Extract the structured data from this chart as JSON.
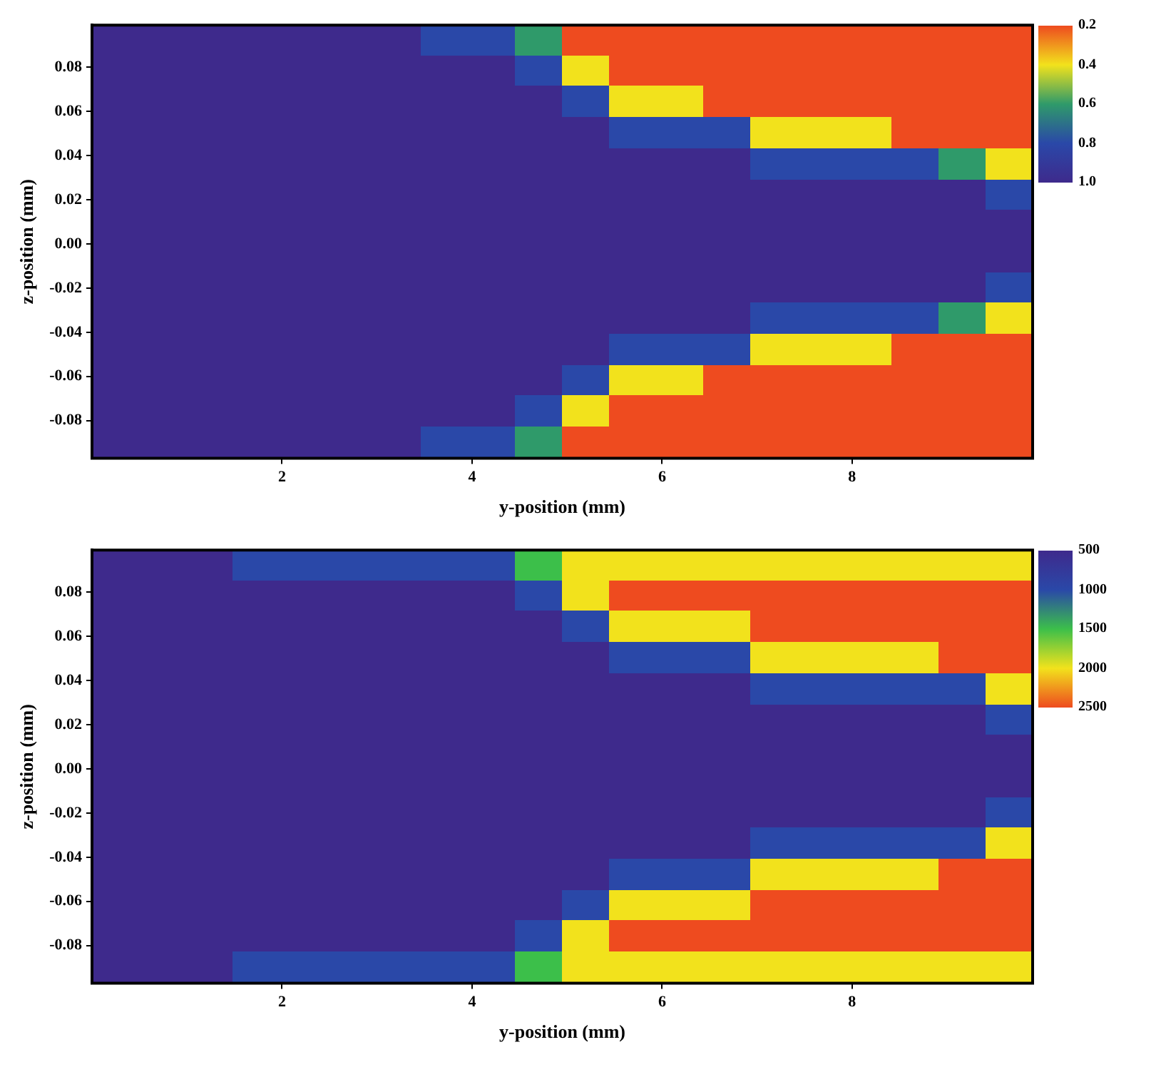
{
  "chart_data": [
    {
      "type": "heatmap",
      "xlabel": "y-position (mm)",
      "ylabel": "z-position (mm)",
      "xlim": [
        0,
        9.9
      ],
      "ylim": [
        -0.097,
        0.099
      ],
      "xticks": [
        2,
        4,
        6,
        8
      ],
      "yticks": [
        0.08,
        0.06,
        0.04,
        0.02,
        {
          "value": 0,
          "label": "0.00"
        },
        -0.02,
        -0.04,
        -0.06,
        -0.08
      ],
      "clim": [
        0.2,
        1
      ],
      "cticks": [
        0.2,
        0.4,
        0.6,
        0.8,
        {
          "value": 1,
          "label": "1.0"
        }
      ],
      "colors": [
        "#ee4b1f",
        "#f2e21c",
        "#2f9a6a",
        "#2a48a8",
        "#3e2a8c"
      ],
      "cells": [
        [
          1,
          1,
          1,
          1,
          1,
          1,
          1,
          0.8,
          0.8,
          0.6,
          0.2,
          0.2,
          0.2,
          0.2,
          0.2,
          0.2,
          0.2,
          0.2,
          0.2,
          0.2
        ],
        [
          1,
          1,
          1,
          1,
          1,
          1,
          1,
          1,
          1,
          0.8,
          0.4,
          0.2,
          0.2,
          0.2,
          0.2,
          0.2,
          0.2,
          0.2,
          0.2,
          0.2
        ],
        [
          1,
          1,
          1,
          1,
          1,
          1,
          1,
          1,
          1,
          1,
          0.8,
          0.4,
          0.4,
          0.2,
          0.2,
          0.2,
          0.2,
          0.2,
          0.2,
          0.2
        ],
        [
          1,
          1,
          1,
          1,
          1,
          1,
          1,
          1,
          1,
          1,
          1,
          0.8,
          0.8,
          0.8,
          0.4,
          0.4,
          0.4,
          0.2,
          0.2,
          0.2
        ],
        [
          1,
          1,
          1,
          1,
          1,
          1,
          1,
          1,
          1,
          1,
          1,
          1,
          1,
          1,
          0.8,
          0.8,
          0.8,
          0.8,
          0.6,
          0.4
        ],
        [
          1,
          1,
          1,
          1,
          1,
          1,
          1,
          1,
          1,
          1,
          1,
          1,
          1,
          1,
          1,
          1,
          1,
          1,
          1,
          0.8
        ],
        [
          1,
          1,
          1,
          1,
          1,
          1,
          1,
          1,
          1,
          1,
          1,
          1,
          1,
          1,
          1,
          1,
          1,
          1,
          1,
          1
        ],
        [
          1,
          1,
          1,
          1,
          1,
          1,
          1,
          1,
          1,
          1,
          1,
          1,
          1,
          1,
          1,
          1,
          1,
          1,
          1,
          1
        ],
        [
          1,
          1,
          1,
          1,
          1,
          1,
          1,
          1,
          1,
          1,
          1,
          1,
          1,
          1,
          1,
          1,
          1,
          1,
          1,
          0.8
        ],
        [
          1,
          1,
          1,
          1,
          1,
          1,
          1,
          1,
          1,
          1,
          1,
          1,
          1,
          1,
          0.8,
          0.8,
          0.8,
          0.8,
          0.6,
          0.4
        ],
        [
          1,
          1,
          1,
          1,
          1,
          1,
          1,
          1,
          1,
          1,
          1,
          0.8,
          0.8,
          0.8,
          0.4,
          0.4,
          0.4,
          0.2,
          0.2,
          0.2
        ],
        [
          1,
          1,
          1,
          1,
          1,
          1,
          1,
          1,
          1,
          1,
          0.8,
          0.4,
          0.4,
          0.2,
          0.2,
          0.2,
          0.2,
          0.2,
          0.2,
          0.2
        ],
        [
          1,
          1,
          1,
          1,
          1,
          1,
          1,
          1,
          1,
          0.8,
          0.4,
          0.2,
          0.2,
          0.2,
          0.2,
          0.2,
          0.2,
          0.2,
          0.2,
          0.2
        ],
        [
          1,
          1,
          1,
          1,
          1,
          1,
          1,
          0.8,
          0.8,
          0.6,
          0.2,
          0.2,
          0.2,
          0.2,
          0.2,
          0.2,
          0.2,
          0.2,
          0.2,
          0.2
        ]
      ]
    },
    {
      "type": "heatmap",
      "xlabel": "y-position (mm)",
      "ylabel": "z-position (mm)",
      "xlim": [
        0,
        9.9
      ],
      "ylim": [
        -0.097,
        0.099
      ],
      "xticks": [
        2,
        4,
        6,
        8
      ],
      "yticks": [
        0.08,
        0.06,
        0.04,
        0.02,
        {
          "value": 0,
          "label": "0.00"
        },
        -0.02,
        -0.04,
        -0.06,
        -0.08
      ],
      "clim": [
        500,
        2500
      ],
      "cticks": [
        500,
        1000,
        1500,
        2000,
        2500
      ],
      "colors": [
        "#3e2a8c",
        "#2a48a8",
        "#3cbf4a",
        "#f2e21c",
        "#ee4b1f"
      ],
      "cells": [
        [
          500,
          500,
          500,
          1000,
          1000,
          1000,
          1000,
          1000,
          1000,
          1500,
          2000,
          2000,
          2000,
          2000,
          2000,
          2000,
          2000,
          2000,
          2000,
          2000
        ],
        [
          500,
          500,
          500,
          500,
          500,
          500,
          500,
          500,
          500,
          1000,
          2000,
          2500,
          2500,
          2500,
          2500,
          2500,
          2500,
          2500,
          2500,
          2500
        ],
        [
          500,
          500,
          500,
          500,
          500,
          500,
          500,
          500,
          500,
          500,
          1000,
          2000,
          2000,
          2000,
          2500,
          2500,
          2500,
          2500,
          2500,
          2500
        ],
        [
          500,
          500,
          500,
          500,
          500,
          500,
          500,
          500,
          500,
          500,
          500,
          1000,
          1000,
          1000,
          2000,
          2000,
          2000,
          2000,
          2500,
          2500
        ],
        [
          500,
          500,
          500,
          500,
          500,
          500,
          500,
          500,
          500,
          500,
          500,
          500,
          500,
          500,
          1000,
          1000,
          1000,
          1000,
          1000,
          2000
        ],
        [
          500,
          500,
          500,
          500,
          500,
          500,
          500,
          500,
          500,
          500,
          500,
          500,
          500,
          500,
          500,
          500,
          500,
          500,
          500,
          1000
        ],
        [
          500,
          500,
          500,
          500,
          500,
          500,
          500,
          500,
          500,
          500,
          500,
          500,
          500,
          500,
          500,
          500,
          500,
          500,
          500,
          500
        ],
        [
          500,
          500,
          500,
          500,
          500,
          500,
          500,
          500,
          500,
          500,
          500,
          500,
          500,
          500,
          500,
          500,
          500,
          500,
          500,
          500
        ],
        [
          500,
          500,
          500,
          500,
          500,
          500,
          500,
          500,
          500,
          500,
          500,
          500,
          500,
          500,
          500,
          500,
          500,
          500,
          500,
          1000
        ],
        [
          500,
          500,
          500,
          500,
          500,
          500,
          500,
          500,
          500,
          500,
          500,
          500,
          500,
          500,
          1000,
          1000,
          1000,
          1000,
          1000,
          2000
        ],
        [
          500,
          500,
          500,
          500,
          500,
          500,
          500,
          500,
          500,
          500,
          500,
          1000,
          1000,
          1000,
          2000,
          2000,
          2000,
          2000,
          2500,
          2500
        ],
        [
          500,
          500,
          500,
          500,
          500,
          500,
          500,
          500,
          500,
          500,
          1000,
          2000,
          2000,
          2000,
          2500,
          2500,
          2500,
          2500,
          2500,
          2500
        ],
        [
          500,
          500,
          500,
          500,
          500,
          500,
          500,
          500,
          500,
          1000,
          2000,
          2500,
          2500,
          2500,
          2500,
          2500,
          2500,
          2500,
          2500,
          2500
        ],
        [
          500,
          500,
          500,
          1000,
          1000,
          1000,
          1000,
          1000,
          1000,
          1500,
          2000,
          2000,
          2000,
          2000,
          2000,
          2000,
          2000,
          2000,
          2000,
          2000
        ]
      ]
    }
  ]
}
